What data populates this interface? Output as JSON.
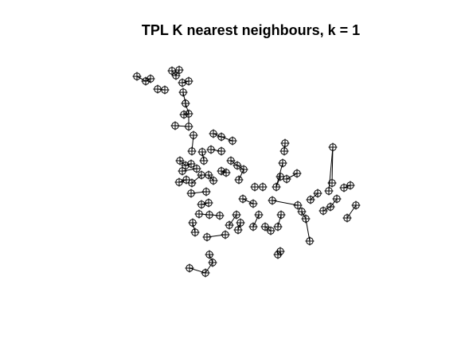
{
  "title": "TPL K nearest neighbours, k = 1",
  "chart_data": {
    "type": "scatter",
    "graph": "k-nearest-neighbour links between points",
    "k": 1,
    "axes": "none",
    "grid": false,
    "colors": {
      "points": "#000000",
      "links": "#000000",
      "background": "#ffffff"
    },
    "points": [
      [
        172,
        96
      ],
      [
        183,
        102
      ],
      [
        189,
        99
      ],
      [
        198,
        112
      ],
      [
        207,
        113
      ],
      [
        216,
        89
      ],
      [
        221,
        95
      ],
      [
        225,
        88
      ],
      [
        229,
        104
      ],
      [
        237,
        102
      ],
      [
        230,
        116
      ],
      [
        233,
        130
      ],
      [
        237,
        143
      ],
      [
        231,
        144
      ],
      [
        220,
        158
      ],
      [
        237,
        159
      ],
      [
        243,
        170
      ],
      [
        241,
        190
      ],
      [
        268,
        168
      ],
      [
        278,
        172
      ],
      [
        292,
        177
      ],
      [
        265,
        188
      ],
      [
        278,
        190
      ],
      [
        254,
        191
      ],
      [
        256,
        202
      ],
      [
        226,
        202
      ],
      [
        233,
        208
      ],
      [
        240,
        206
      ],
      [
        229,
        215
      ],
      [
        247,
        212
      ],
      [
        225,
        229
      ],
      [
        234,
        226
      ],
      [
        241,
        230
      ],
      [
        253,
        220
      ],
      [
        262,
        220
      ],
      [
        268,
        227
      ],
      [
        278,
        215
      ],
      [
        284,
        217
      ],
      [
        290,
        202
      ],
      [
        298,
        208
      ],
      [
        306,
        213
      ],
      [
        300,
        226
      ],
      [
        240,
        243
      ],
      [
        259,
        241
      ],
      [
        262,
        255
      ],
      [
        253,
        257
      ],
      [
        250,
        269
      ],
      [
        263,
        270
      ],
      [
        276,
        271
      ],
      [
        242,
        280
      ],
      [
        245,
        292
      ],
      [
        260,
        298
      ],
      [
        283,
        295
      ],
      [
        288,
        283
      ],
      [
        297,
        270
      ],
      [
        299,
        289
      ],
      [
        302,
        280
      ],
      [
        318,
        285
      ],
      [
        325,
        270
      ],
      [
        333,
        285
      ],
      [
        340,
        290
      ],
      [
        349,
        285
      ],
      [
        353,
        270
      ],
      [
        357,
        190
      ],
      [
        358,
        180
      ],
      [
        355,
        205
      ],
      [
        347,
        235
      ],
      [
        352,
        222
      ],
      [
        360,
        225
      ],
      [
        373,
        218
      ],
      [
        320,
        235
      ],
      [
        330,
        235
      ],
      [
        305,
        250
      ],
      [
        318,
        256
      ],
      [
        342,
        252
      ],
      [
        374,
        258
      ],
      [
        379,
        266
      ],
      [
        384,
        275
      ],
      [
        389,
        303
      ],
      [
        390,
        251
      ],
      [
        399,
        243
      ],
      [
        413,
        240
      ],
      [
        418,
        185
      ],
      [
        417,
        230
      ],
      [
        432,
        236
      ],
      [
        440,
        233
      ],
      [
        447,
        258
      ],
      [
        436,
        274
      ],
      [
        406,
        265
      ],
      [
        415,
        260
      ],
      [
        423,
        250
      ],
      [
        352,
        316
      ],
      [
        349,
        320
      ],
      [
        263,
        320
      ],
      [
        267,
        330
      ],
      [
        258,
        343
      ],
      [
        238,
        337
      ]
    ],
    "links": [
      [
        0,
        1
      ],
      [
        1,
        2
      ],
      [
        3,
        4
      ],
      [
        5,
        6
      ],
      [
        6,
        7
      ],
      [
        8,
        9
      ],
      [
        10,
        11
      ],
      [
        11,
        12
      ],
      [
        12,
        13
      ],
      [
        14,
        15
      ],
      [
        15,
        12
      ],
      [
        16,
        17
      ],
      [
        18,
        19
      ],
      [
        19,
        20
      ],
      [
        21,
        22
      ],
      [
        23,
        24
      ],
      [
        25,
        26
      ],
      [
        26,
        27
      ],
      [
        28,
        29
      ],
      [
        30,
        31
      ],
      [
        32,
        33
      ],
      [
        34,
        35
      ],
      [
        36,
        37
      ],
      [
        38,
        39
      ],
      [
        39,
        40
      ],
      [
        41,
        40
      ],
      [
        42,
        43
      ],
      [
        44,
        45
      ],
      [
        46,
        47
      ],
      [
        47,
        48
      ],
      [
        49,
        50
      ],
      [
        51,
        52
      ],
      [
        53,
        54
      ],
      [
        55,
        56
      ],
      [
        57,
        58
      ],
      [
        59,
        60
      ],
      [
        61,
        62
      ],
      [
        63,
        64
      ],
      [
        65,
        66
      ],
      [
        66,
        67
      ],
      [
        68,
        69
      ],
      [
        70,
        71
      ],
      [
        72,
        73
      ],
      [
        74,
        75
      ],
      [
        76,
        77
      ],
      [
        77,
        78
      ],
      [
        79,
        80
      ],
      [
        81,
        82
      ],
      [
        82,
        83
      ],
      [
        84,
        85
      ],
      [
        86,
        87
      ],
      [
        88,
        89
      ],
      [
        89,
        90
      ],
      [
        91,
        92
      ],
      [
        93,
        94
      ],
      [
        94,
        95
      ],
      [
        95,
        96
      ]
    ]
  }
}
